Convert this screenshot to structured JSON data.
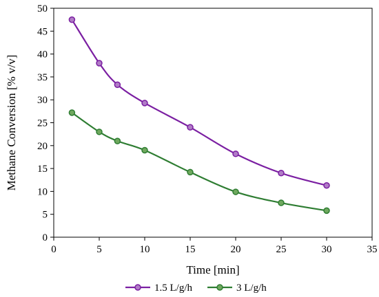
{
  "chart_data": {
    "type": "line",
    "title": "",
    "xlabel": "Time [min]",
    "ylabel": "Methane Conversion [% v/v]",
    "xlim": [
      0,
      35
    ],
    "ylim": [
      0,
      50
    ],
    "x_ticks": [
      0,
      5,
      10,
      15,
      20,
      25,
      30,
      35
    ],
    "y_ticks": [
      0,
      5,
      10,
      15,
      20,
      25,
      30,
      35,
      40,
      45,
      50
    ],
    "grid": false,
    "legend_position": "bottom",
    "series": [
      {
        "name": "1.5 L/g/h",
        "color": "#7B1FA2",
        "marker_fill": "#B07CC6",
        "x": [
          2,
          5,
          7,
          10,
          15,
          20,
          25,
          30
        ],
        "y": [
          47.5,
          38.0,
          33.3,
          29.3,
          24.0,
          18.2,
          14.0,
          11.3
        ]
      },
      {
        "name": "3 L/g/h",
        "color": "#2E7D32",
        "marker_fill": "#6FA85E",
        "x": [
          2,
          5,
          7,
          10,
          15,
          20,
          25,
          30
        ],
        "y": [
          27.2,
          23.0,
          21.0,
          19.0,
          14.2,
          9.9,
          7.5,
          5.8
        ]
      }
    ]
  }
}
